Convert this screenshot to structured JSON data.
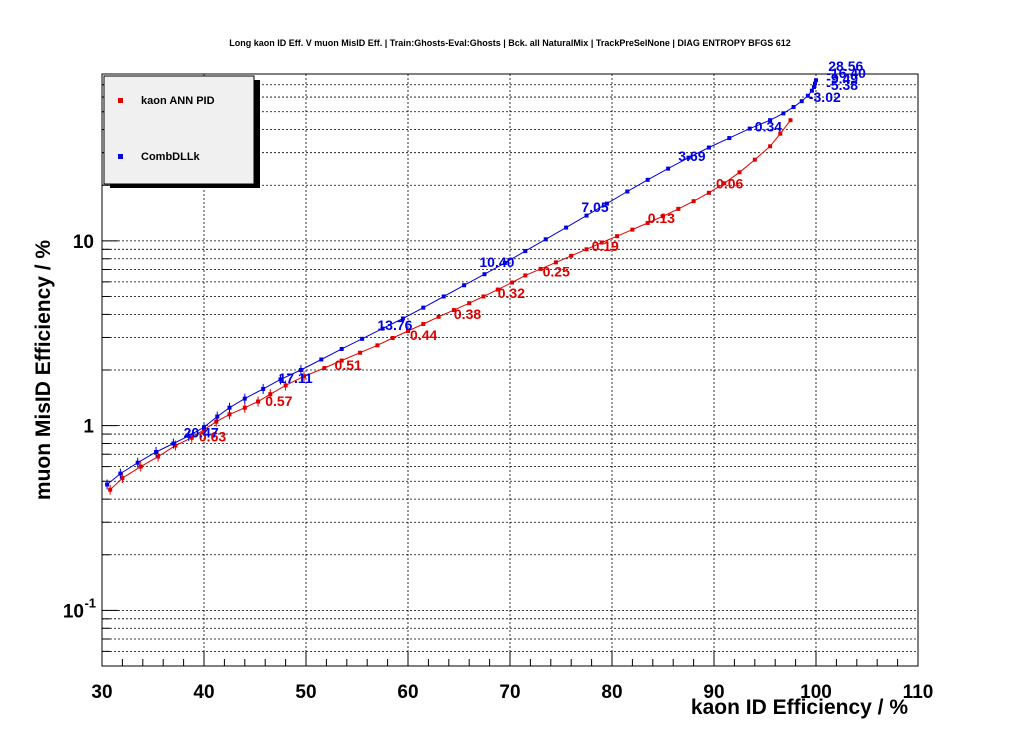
{
  "chart_data": {
    "type": "scatter",
    "title": "Long kaon ID Eff. V muon MisID Eff. | Train:Ghosts-Eval:Ghosts | Bck. all NaturalMix | TrackPreSelNone | DIAG ENTROPY BFGS 612",
    "xlabel": "kaon ID Efficiency / %",
    "ylabel": "muon MisID Efficiency / %",
    "xlim": [
      30,
      110
    ],
    "ylim": [
      0.05,
      80
    ],
    "yscale": "log",
    "grid": true,
    "legend_position": "top-left",
    "x_ticks": [
      "30",
      "40",
      "50",
      "60",
      "70",
      "80",
      "90",
      "100",
      "110"
    ],
    "y_ticks": [
      {
        "value": 0.1,
        "base": "10",
        "exp": "-1"
      },
      {
        "value": 1,
        "base": "1",
        "exp": ""
      },
      {
        "value": 10,
        "base": "10",
        "exp": ""
      }
    ],
    "series": [
      {
        "name": "kaon ANN PID",
        "color": "#e00000",
        "x": [
          30.8,
          32.0,
          33.8,
          35.5,
          37.2,
          38.8,
          40.0,
          41.2,
          42.5,
          44.0,
          45.3,
          46.5,
          48.0,
          49.8,
          51.8,
          53.5,
          55.3,
          57.0,
          58.5,
          60.0,
          61.5,
          63.0,
          64.5,
          66.0,
          67.4,
          68.8,
          70.2,
          71.5,
          73.0,
          74.5,
          76.0,
          77.5,
          79.0,
          80.5,
          82.0,
          83.5,
          85.0,
          86.5,
          88.0,
          89.5,
          91.0,
          92.5,
          94.0,
          95.5,
          96.5,
          97.5
        ],
        "y": [
          0.45,
          0.52,
          0.6,
          0.68,
          0.78,
          0.86,
          0.95,
          1.05,
          1.15,
          1.25,
          1.35,
          1.48,
          1.65,
          1.85,
          2.05,
          2.25,
          2.48,
          2.72,
          2.98,
          3.25,
          3.55,
          3.88,
          4.22,
          4.6,
          5.0,
          5.45,
          5.95,
          6.5,
          7.05,
          7.65,
          8.3,
          9.0,
          9.8,
          10.6,
          11.5,
          12.5,
          13.6,
          14.9,
          16.4,
          18.2,
          20.5,
          23.5,
          27.5,
          32.5,
          38.0,
          45.0
        ],
        "labels": [
          {
            "text": "0.06",
            "x": 90.2,
            "y": 19.2
          },
          {
            "text": "0.13",
            "x": 83.5,
            "y": 12.5
          },
          {
            "text": "0.19",
            "x": 78.0,
            "y": 8.8
          },
          {
            "text": "0.25",
            "x": 73.2,
            "y": 6.4
          },
          {
            "text": "0.32",
            "x": 68.8,
            "y": 4.9
          },
          {
            "text": "0.38",
            "x": 64.5,
            "y": 3.78
          },
          {
            "text": "0.44",
            "x": 60.2,
            "y": 2.9
          },
          {
            "text": "0.51",
            "x": 52.8,
            "y": 2.0
          },
          {
            "text": "0.57",
            "x": 46.0,
            "y": 1.28
          },
          {
            "text": "0.63",
            "x": 39.5,
            "y": 0.82
          }
        ]
      },
      {
        "name": "CombDLLk",
        "color": "#0000e0",
        "x": [
          30.5,
          31.8,
          33.5,
          35.3,
          37.0,
          38.5,
          40.0,
          41.3,
          42.5,
          44.0,
          45.8,
          47.5,
          49.5,
          51.5,
          53.5,
          55.5,
          57.5,
          59.5,
          61.5,
          63.5,
          65.5,
          67.5,
          69.5,
          71.5,
          73.5,
          75.5,
          77.5,
          79.5,
          81.5,
          83.5,
          85.5,
          87.5,
          89.5,
          91.5,
          93.5,
          95.5,
          96.8,
          97.8,
          98.6,
          99.2,
          99.6,
          99.8,
          99.9,
          100.0
        ],
        "y": [
          0.48,
          0.55,
          0.63,
          0.72,
          0.8,
          0.88,
          0.98,
          1.12,
          1.25,
          1.4,
          1.58,
          1.78,
          2.0,
          2.28,
          2.6,
          2.95,
          3.35,
          3.8,
          4.35,
          5.0,
          5.75,
          6.6,
          7.6,
          8.8,
          10.2,
          11.8,
          13.7,
          15.9,
          18.5,
          21.4,
          24.6,
          28.2,
          32.0,
          36.0,
          40.5,
          45.0,
          49.0,
          53.0,
          57.0,
          61.0,
          65.0,
          68.0,
          71.0,
          74.0
        ],
        "labels": [
          {
            "text": "0.34",
            "x": 94.0,
            "y": 39.0
          },
          {
            "text": "3.69",
            "x": 86.5,
            "y": 27.0
          },
          {
            "text": "7.05",
            "x": 77.0,
            "y": 14.3
          },
          {
            "text": "10.40",
            "x": 67.0,
            "y": 7.2
          },
          {
            "text": "13.76",
            "x": 57.0,
            "y": 3.3
          },
          {
            "text": "17.11",
            "x": 47.3,
            "y": 1.7
          },
          {
            "text": "20.47",
            "x": 38.0,
            "y": 0.86
          },
          {
            "text": "-3.02",
            "x": 99.3,
            "y": 56.5
          },
          {
            "text": "-5.38",
            "x": 101.0,
            "y": 65.5
          },
          {
            "text": "-9.49",
            "x": 101.0,
            "y": 71.0
          },
          {
            "text": "-16.40",
            "x": 101.0,
            "y": 76.0
          },
          {
            "text": "28.56",
            "x": 101.2,
            "y": 83.0
          }
        ]
      }
    ]
  }
}
